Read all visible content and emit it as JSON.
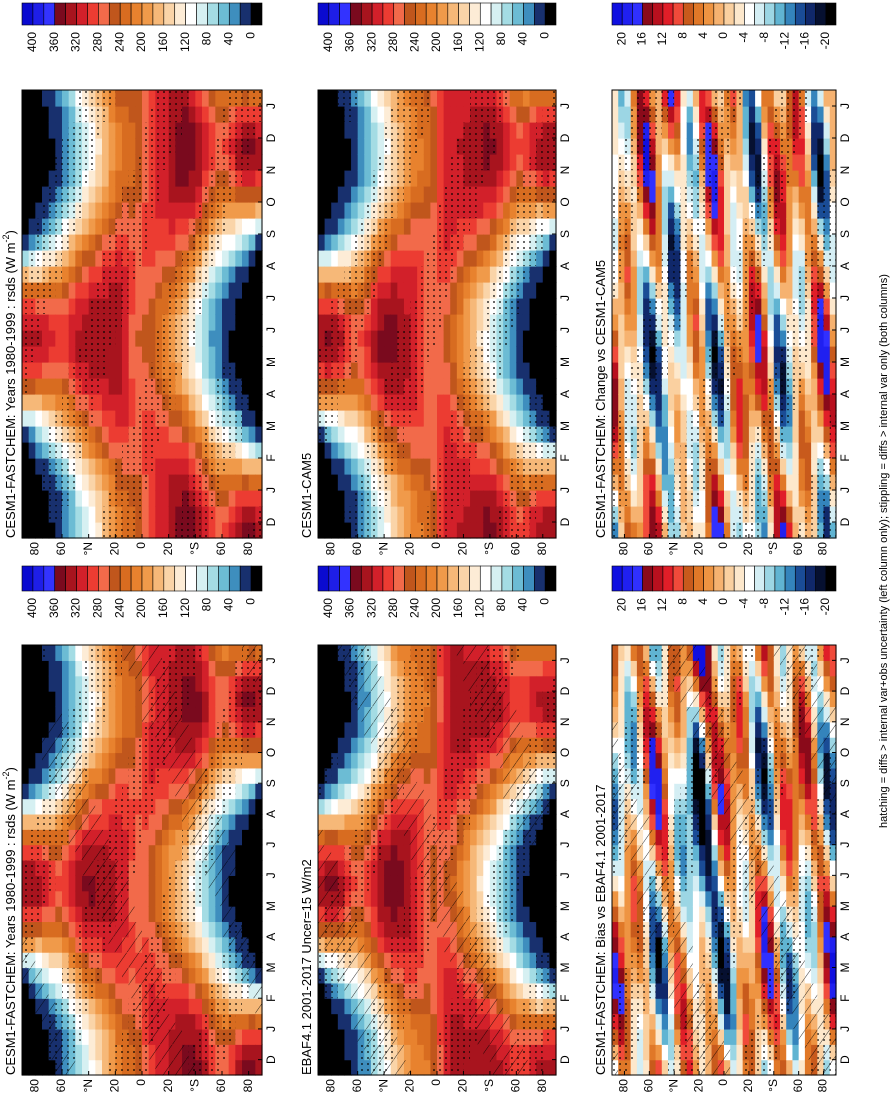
{
  "panels": [
    {
      "title": "CESM1-FASTCHEM: Years 1980-1999 : rsds (W m",
      "title_superscript": "-2",
      "title_suffix": ")",
      "colorbar": {
        "labels": [
          400,
          360,
          320,
          280,
          240,
          200,
          160,
          120,
          80,
          40,
          0
        ],
        "colors": [
          "#0a0ad0",
          "#1e1ee8",
          "#3333ff",
          "#7a0a1e",
          "#a8141e",
          "#d2202a",
          "#ec3c32",
          "#f26a4a",
          "#c0561c",
          "#d86c20",
          "#e8822e",
          "#f09a4a",
          "#f6b878",
          "#fad4a8",
          "#fdecd6",
          "#ffffff",
          "#d6f0f2",
          "#a4dce4",
          "#6cbcd4",
          "#3e8ebe",
          "#18306e",
          "#000000"
        ]
      }
    },
    {
      "title": "CESM1-FASTCHEM: Years 1980-1999 : rsds (W m",
      "title_superscript": "-2",
      "title_suffix": ")",
      "colorbar": {
        "labels": [
          400,
          360,
          320,
          280,
          240,
          200,
          160,
          120,
          80,
          40,
          0
        ],
        "colors": [
          "#0a0ad0",
          "#1e1ee8",
          "#3333ff",
          "#7a0a1e",
          "#a8141e",
          "#d2202a",
          "#ec3c32",
          "#f26a4a",
          "#c0561c",
          "#d86c20",
          "#e8822e",
          "#f09a4a",
          "#f6b878",
          "#fad4a8",
          "#fdecd6",
          "#ffffff",
          "#d6f0f2",
          "#a4dce4",
          "#6cbcd4",
          "#3e8ebe",
          "#18306e",
          "#000000"
        ]
      }
    },
    {
      "title": "CESM1-CAM5",
      "colorbar": {
        "labels": [
          400,
          360,
          320,
          280,
          240,
          200,
          160,
          120,
          80,
          40,
          0
        ],
        "colors": [
          "#0a0ad0",
          "#1e1ee8",
          "#3333ff",
          "#7a0a1e",
          "#a8141e",
          "#d2202a",
          "#ec3c32",
          "#f26a4a",
          "#c0561c",
          "#d86c20",
          "#e8822e",
          "#f09a4a",
          "#f6b878",
          "#fad4a8",
          "#fdecd6",
          "#ffffff",
          "#d6f0f2",
          "#a4dce4",
          "#6cbcd4",
          "#3e8ebe",
          "#18306e",
          "#000000"
        ]
      }
    },
    {
      "title": "EBAF4.1 2001-2017 Uncer=15 W/m2",
      "colorbar": {
        "labels": [
          400,
          360,
          320,
          280,
          240,
          200,
          160,
          120,
          80,
          40,
          0
        ],
        "colors": [
          "#0a0ad0",
          "#1e1ee8",
          "#3333ff",
          "#7a0a1e",
          "#a8141e",
          "#d2202a",
          "#ec3c32",
          "#f26a4a",
          "#c0561c",
          "#d86c20",
          "#e8822e",
          "#f09a4a",
          "#f6b878",
          "#fad4a8",
          "#fdecd6",
          "#ffffff",
          "#d6f0f2",
          "#a4dce4",
          "#6cbcd4",
          "#3e8ebe",
          "#18306e",
          "#000000"
        ]
      }
    },
    {
      "title": "CESM1-FASTCHEM: Change vs CESM1-CAM5",
      "colorbar": {
        "labels": [
          20,
          16,
          12,
          8,
          4,
          0,
          -4,
          -8,
          -12,
          -16,
          -20
        ],
        "colors": [
          "#1010e0",
          "#2020f0",
          "#3030ff",
          "#8a0a1a",
          "#b8101e",
          "#e01e28",
          "#f04a3a",
          "#c85a1c",
          "#e07828",
          "#ee9442",
          "#f6b270",
          "#fad0a0",
          "#fde8cc",
          "#ffffff",
          "#d4eef4",
          "#9cd6e4",
          "#60b4d2",
          "#3484bc",
          "#1a4c96",
          "#10286a",
          "#061030",
          "#000000"
        ]
      }
    },
    {
      "title": "CESM1-FASTCHEM: Bias vs EBAF4.1 2001-2017",
      "colorbar": {
        "labels": [
          20,
          16,
          12,
          8,
          4,
          0,
          -4,
          -8,
          -12,
          -16,
          -20
        ],
        "colors": [
          "#1010e0",
          "#2020f0",
          "#3030ff",
          "#8a0a1a",
          "#b8101e",
          "#e01e28",
          "#f04a3a",
          "#c85a1c",
          "#e07828",
          "#ee9442",
          "#f6b270",
          "#fad0a0",
          "#fde8cc",
          "#ffffff",
          "#d4eef4",
          "#9cd6e4",
          "#60b4d2",
          "#3484bc",
          "#1a4c96",
          "#10286a",
          "#061030",
          "#000000"
        ]
      }
    }
  ],
  "months": [
    "D",
    "J",
    "F",
    "M",
    "A",
    "M",
    "J",
    "J",
    "A",
    "S",
    "O",
    "N",
    "D",
    "J"
  ],
  "latitude_labels": [
    "80",
    "60",
    "°N",
    "20",
    "0",
    "20",
    "°S",
    "60",
    "80"
  ],
  "footer": "hatching = diffs > internal var+obs uncertainty (left column only); stippling = diffs > internal var only (both columns)"
}
